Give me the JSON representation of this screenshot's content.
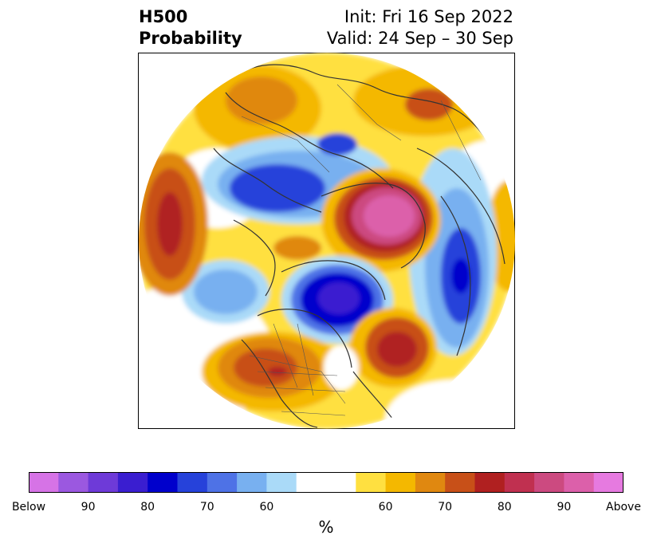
{
  "title": {
    "left_line1": "H500",
    "left_line2": "Probability",
    "right_line1": "Init: Fri 16 Sep 2022",
    "right_line2": "Valid: 24 Sep – 30 Sep"
  },
  "colorbar": {
    "unit": "%",
    "tick_labels": [
      "Below",
      "90",
      "80",
      "70",
      "60",
      "60",
      "70",
      "80",
      "90",
      "Above"
    ],
    "colors": [
      "#d673e6",
      "#9b58e0",
      "#6e3ad8",
      "#3a1ed0",
      "#0000cc",
      "#2642da",
      "#4e72e6",
      "#78b0f0",
      "#aadaf8",
      "#ffffff",
      "#ffe040",
      "#f4b800",
      "#e08810",
      "#c85018",
      "#b02020",
      "#c03050",
      "#cc4a80",
      "#dc60aa",
      "#e67ae0"
    ]
  },
  "map": {
    "projection": "north-polar-stereographic",
    "anomalies": [
      {
        "region": "northeast-pacific-gulf-of-alaska",
        "sign": "above",
        "peak": "above"
      },
      {
        "region": "western-north-america",
        "sign": "above",
        "peak": "80"
      },
      {
        "region": "greenland-north-atlantic",
        "sign": "below",
        "peak": "below"
      },
      {
        "region": "eastern-canada-labrador",
        "sign": "above",
        "peak": "80"
      },
      {
        "region": "kara-barents-sea",
        "sign": "above",
        "peak": "above"
      },
      {
        "region": "eastern-siberia",
        "sign": "below",
        "peak": "80"
      },
      {
        "region": "central-asia",
        "sign": "above",
        "peak": "70"
      },
      {
        "region": "europe",
        "sign": "below",
        "peak": "70"
      },
      {
        "region": "northwest-atlantic",
        "sign": "above",
        "peak": "80"
      },
      {
        "region": "east-asia",
        "sign": "below",
        "peak": "80"
      }
    ]
  }
}
